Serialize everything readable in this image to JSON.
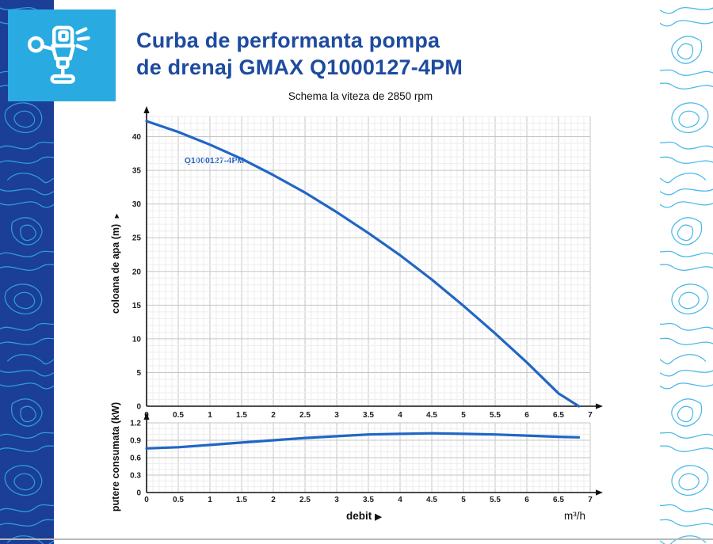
{
  "header": {
    "title_line1": "Curba de performanta pompa",
    "title_line2": "de drenaj GMAX Q1000127-4PM",
    "accent_color": "#1e4b9f"
  },
  "brand": {
    "icon": "sprinkler-icon",
    "tile_color": "#29abe2"
  },
  "charts": {
    "subtitle": "Schema la viteza de 2850 rpm",
    "xlabel": "debit",
    "xlabel_arrow": "▶",
    "x_unit": "m³/h",
    "head": {
      "ylabel": "coloana de apa (m)",
      "ylabel_arrow": "▲",
      "series_label": "Q1000127-4PM"
    },
    "power": {
      "ylabel": "putere consumata (kW)"
    },
    "curve_color": "#2166c5",
    "grid_major_color": "#c6c6c6",
    "grid_minor_color": "#ededed"
  },
  "chart_data": [
    {
      "type": "line",
      "title": "Schema la viteza de 2850 rpm",
      "xlabel": "debit",
      "x_unit": "m³/h",
      "ylabel": "coloana de apa (m)",
      "xlim": [
        0,
        7
      ],
      "ylim": [
        0,
        43
      ],
      "x_major_step": 0.5,
      "x_minor_step": 0.1,
      "y_major_step": 5,
      "y_minor_step": 1,
      "grid": true,
      "legend": "none",
      "series": [
        {
          "name": "Q1000127-4PM",
          "color": "#2166c5",
          "x": [
            0,
            0.5,
            1,
            1.5,
            2,
            2.5,
            3,
            3.5,
            4,
            4.5,
            5,
            5.5,
            6,
            6.5,
            6.82
          ],
          "y": [
            42.3,
            40.7,
            38.8,
            36.7,
            34.3,
            31.7,
            28.8,
            25.7,
            22.4,
            18.8,
            14.9,
            10.8,
            6.5,
            1.9,
            0
          ]
        }
      ]
    },
    {
      "type": "line",
      "title": "",
      "xlabel": "debit",
      "x_unit": "m³/h",
      "ylabel": "putere consumata (kW)",
      "xlim": [
        0,
        7
      ],
      "ylim": [
        0,
        1.2
      ],
      "x_major_step": 0.5,
      "x_minor_step": 0.1,
      "y_major_step": 0.3,
      "y_minor_step": 0.1,
      "grid": true,
      "legend": "none",
      "series": [
        {
          "name": "putere consumata",
          "color": "#2166c5",
          "x": [
            0,
            0.5,
            1,
            1.5,
            2,
            2.5,
            3,
            3.5,
            4,
            4.5,
            5,
            5.5,
            6,
            6.5,
            6.82
          ],
          "y": [
            0.76,
            0.78,
            0.82,
            0.86,
            0.9,
            0.94,
            0.97,
            1.0,
            1.01,
            1.02,
            1.01,
            1.0,
            0.98,
            0.96,
            0.95
          ]
        }
      ]
    }
  ]
}
